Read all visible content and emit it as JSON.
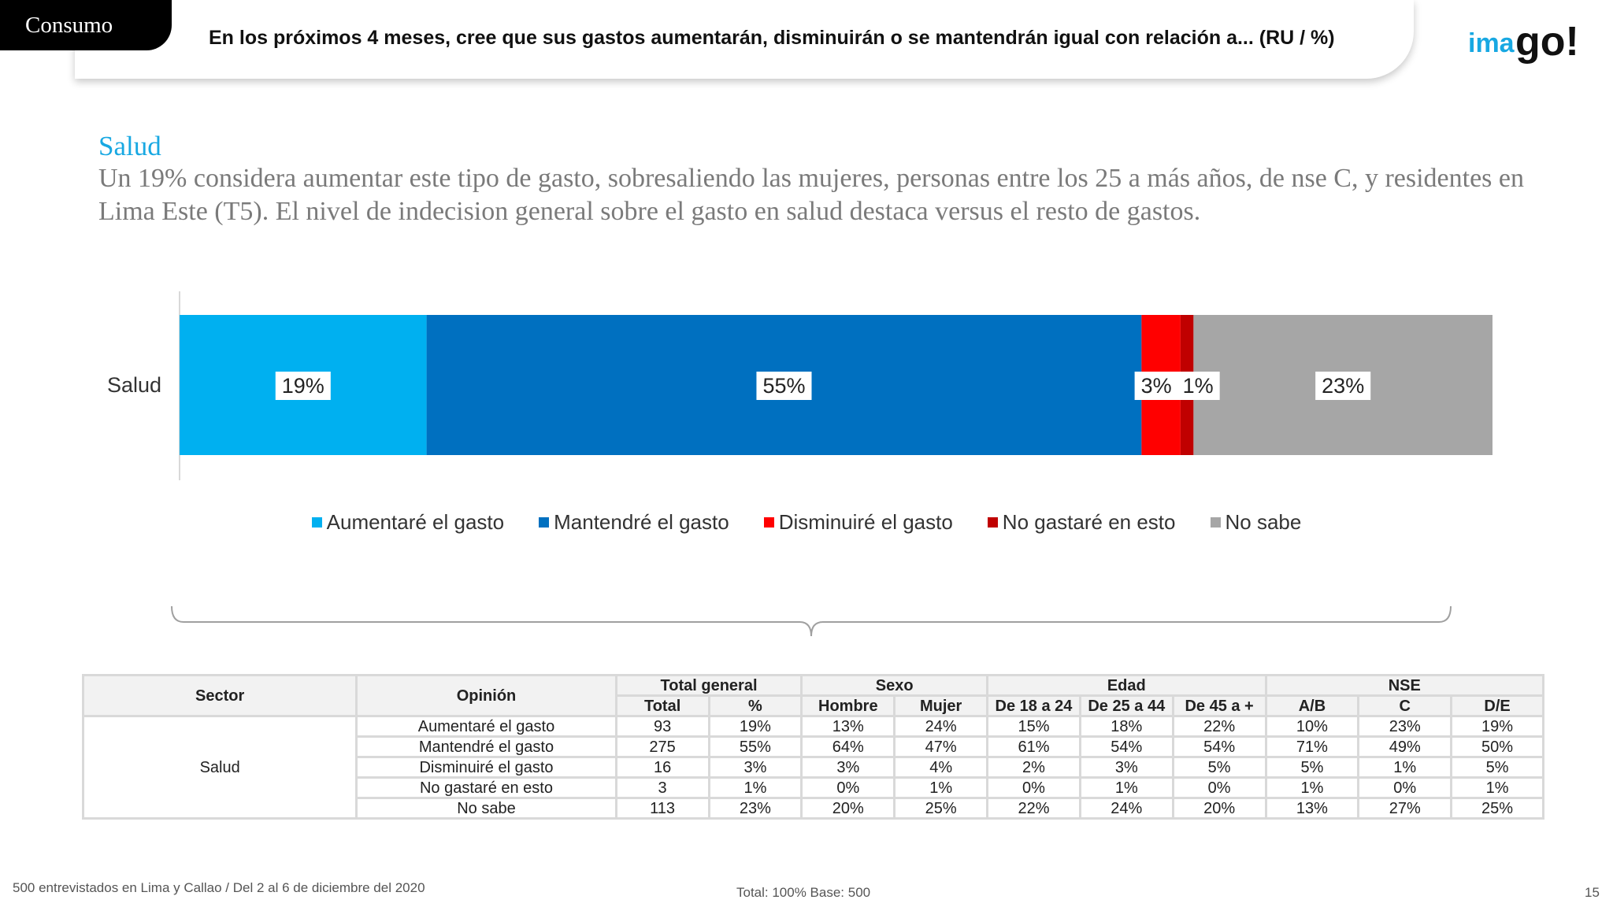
{
  "header": {
    "section_tab": "Consumo",
    "question": "En los próximos 4 meses, cree que sus gastos aumentarán, disminuirán o se mantendrán igual con relación a...  (RU  /  %)",
    "logo_text": "imago!"
  },
  "insight": {
    "title": "Salud",
    "text": "Un 19% considera aumentar este tipo de gasto, sobresaliendo las mujeres, personas entre los 25 a más años, de nse C, y residentes en Lima Este (T5). El nivel de indecision general sobre el gasto en salud destaca versus el resto de gastos."
  },
  "chart_data": {
    "type": "bar",
    "orientation": "horizontal",
    "stacked": true,
    "categories": [
      "Salud"
    ],
    "series": [
      {
        "name": "Aumentaré el gasto",
        "values": [
          19
        ],
        "label": "19%",
        "color": "#00b0f0"
      },
      {
        "name": "Mantendré el gasto",
        "values": [
          55
        ],
        "label": "55%",
        "color": "#0070c0"
      },
      {
        "name": "Disminuiré el gasto",
        "values": [
          3
        ],
        "label": "3%",
        "color": "#ff0000"
      },
      {
        "name": "No gastaré en esto",
        "values": [
          1
        ],
        "label": "1%",
        "color": "#c00000"
      },
      {
        "name": "No sabe",
        "values": [
          23
        ],
        "label": "23%",
        "color": "#a6a6a6"
      }
    ],
    "xlim": [
      0,
      101
    ],
    "legend_position": "bottom",
    "grid": false
  },
  "table": {
    "headers": {
      "sector": "Sector",
      "opinion": "Opinión",
      "total_general": "Total general",
      "sexo": "Sexo",
      "edad": "Edad",
      "nse": "NSE",
      "sub": [
        "Total",
        "%",
        "Hombre",
        "Mujer",
        "De 18 a 24",
        "De 25 a 44",
        "De 45 a +",
        "A/B",
        "C",
        "D/E"
      ]
    },
    "sector": "Salud",
    "rows": [
      {
        "opinion": "Aumentaré el gasto",
        "values": [
          "93",
          "19%",
          "13%",
          "24%",
          "15%",
          "18%",
          "22%",
          "10%",
          "23%",
          "19%"
        ]
      },
      {
        "opinion": "Mantendré el gasto",
        "values": [
          "275",
          "55%",
          "64%",
          "47%",
          "61%",
          "54%",
          "54%",
          "71%",
          "49%",
          "50%"
        ]
      },
      {
        "opinion": "Disminuiré el gasto",
        "values": [
          "16",
          "3%",
          "3%",
          "4%",
          "2%",
          "3%",
          "5%",
          "5%",
          "1%",
          "5%"
        ]
      },
      {
        "opinion": "No gastaré en esto",
        "values": [
          "3",
          "1%",
          "0%",
          "1%",
          "0%",
          "1%",
          "0%",
          "1%",
          "0%",
          "1%"
        ]
      },
      {
        "opinion": "No sabe",
        "values": [
          "113",
          "23%",
          "20%",
          "25%",
          "22%",
          "24%",
          "20%",
          "13%",
          "27%",
          "25%"
        ]
      }
    ]
  },
  "footer": {
    "left": "500 entrevistados en Lima y Callao   /   Del 2 al 6 de diciembre del 2020",
    "center": "Total: 100%   Base: 500",
    "page_number": "15"
  }
}
